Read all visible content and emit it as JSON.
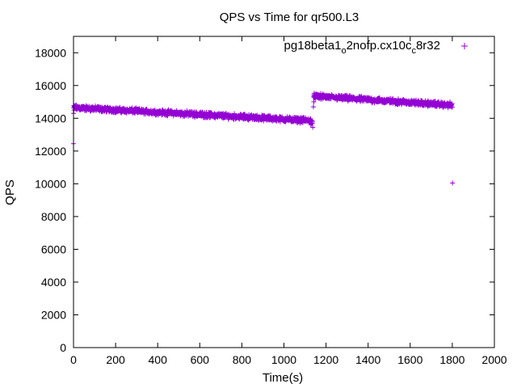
{
  "chart_data": {
    "type": "scatter",
    "title": "QPS vs Time for qr500.L3",
    "xlabel": "Time(s)",
    "ylabel": "QPS",
    "xlim": [
      0,
      2000
    ],
    "ylim": [
      0,
      19000
    ],
    "xticks": [
      0,
      200,
      400,
      600,
      800,
      1000,
      1200,
      1400,
      1600,
      1800,
      2000
    ],
    "yticks": [
      0,
      2000,
      4000,
      6000,
      8000,
      10000,
      12000,
      14000,
      16000,
      18000
    ],
    "grid": false,
    "legend_position": "top-right",
    "marker": "+",
    "series": [
      {
        "name": "pg18beta1_o2nofp.cx10c_c8r32",
        "legend": {
          "parts": [
            "pg18beta1",
            "o",
            "2nofp.cx10c",
            "c",
            "8r32"
          ]
        },
        "color": "#9400d3",
        "segments": [
          {
            "x_start": 1,
            "x_end": 1135,
            "step": 1,
            "y_start": 14650,
            "y_end": 13850,
            "noise": 200
          },
          {
            "x_start": 1141,
            "x_end": 1800,
            "step": 1,
            "y_start": 15350,
            "y_end": 14800,
            "noise": 200
          }
        ],
        "points": [
          [
            0,
            12450
          ],
          [
            0,
            14300
          ],
          [
            2,
            14500
          ],
          [
            1128,
            13600
          ],
          [
            1135,
            13700
          ],
          [
            1137,
            13450
          ],
          [
            1140,
            14700
          ],
          [
            1142,
            15000
          ],
          [
            1801,
            10050
          ]
        ]
      }
    ]
  }
}
